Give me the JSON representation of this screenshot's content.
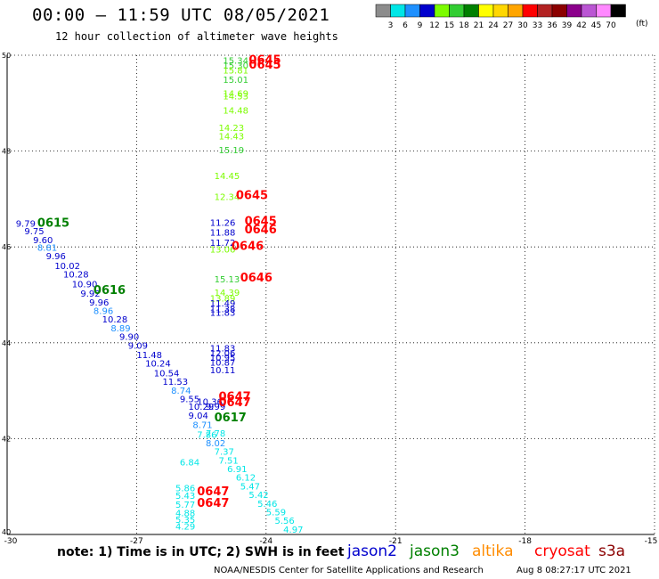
{
  "header": {
    "title": "00:00 – 11:59 UTC 08/05/2021",
    "subtitle": "12 hour collection of altimeter wave heights",
    "legend_unit": "(ft)"
  },
  "colorbar": [
    {
      "label": "3",
      "color": "#8c8c8c"
    },
    {
      "label": "6",
      "color": "#00e6e6"
    },
    {
      "label": "9",
      "color": "#1e90ff"
    },
    {
      "label": "12",
      "color": "#0000cd"
    },
    {
      "label": "15",
      "color": "#7cfc00"
    },
    {
      "label": "18",
      "color": "#32cd32"
    },
    {
      "label": "21",
      "color": "#008000"
    },
    {
      "label": "24",
      "color": "#ffff00"
    },
    {
      "label": "27",
      "color": "#ffd700"
    },
    {
      "label": "30",
      "color": "#ffa500"
    },
    {
      "label": "33",
      "color": "#ff0000"
    },
    {
      "label": "36",
      "color": "#b22222"
    },
    {
      "label": "39",
      "color": "#8b0000"
    },
    {
      "label": "42",
      "color": "#8b008b"
    },
    {
      "label": "45",
      "color": "#ba55d3"
    },
    {
      "label": "70",
      "color": "#ff88ff"
    },
    {
      "label": "",
      "color": "#000000"
    }
  ],
  "chart_data": {
    "type": "scatter",
    "xlim": [
      -30,
      -15
    ],
    "ylim": [
      40,
      50
    ],
    "x_ticks": [
      "-30",
      "-27",
      "-24",
      "-21",
      "-18",
      "-15"
    ],
    "y_ticks": [
      "50",
      "48",
      "46",
      "44",
      "42",
      "40"
    ],
    "grid": true,
    "points": [
      {
        "lon": -25.0,
        "lat": 49.82,
        "v": "15.34",
        "c": "#32cd32"
      },
      {
        "lon": -25.0,
        "lat": 49.72,
        "v": "15.30",
        "c": "#32cd32"
      },
      {
        "lon": -25.0,
        "lat": 49.62,
        "v": "15.81",
        "c": "#7cfc00"
      },
      {
        "lon": -25.0,
        "lat": 49.42,
        "v": "15.01",
        "c": "#32cd32"
      },
      {
        "lon": -25.0,
        "lat": 49.14,
        "v": "14.69",
        "c": "#7cfc00"
      },
      {
        "lon": -25.0,
        "lat": 49.08,
        "v": "14.53",
        "c": "#7cfc00"
      },
      {
        "lon": -25.0,
        "lat": 48.78,
        "v": "14.48",
        "c": "#7cfc00"
      },
      {
        "lon": -25.1,
        "lat": 48.42,
        "v": "14.23",
        "c": "#7cfc00"
      },
      {
        "lon": -25.1,
        "lat": 48.24,
        "v": "14.43",
        "c": "#7cfc00"
      },
      {
        "lon": -25.1,
        "lat": 47.96,
        "v": "15.19",
        "c": "#32cd32"
      },
      {
        "lon": -25.2,
        "lat": 47.42,
        "v": "14.45",
        "c": "#7cfc00"
      },
      {
        "lon": -25.2,
        "lat": 46.98,
        "v": "12.34",
        "c": "#7cfc00"
      },
      {
        "lon": -25.3,
        "lat": 46.44,
        "v": "11.26",
        "c": "#0000cd"
      },
      {
        "lon": -25.3,
        "lat": 46.24,
        "v": "11.88",
        "c": "#0000cd"
      },
      {
        "lon": -25.3,
        "lat": 46.02,
        "v": "11.72",
        "c": "#0000cd"
      },
      {
        "lon": -25.3,
        "lat": 45.88,
        "v": "13.06",
        "c": "#7cfc00"
      },
      {
        "lon": -25.2,
        "lat": 45.26,
        "v": "15.13",
        "c": "#32cd32"
      },
      {
        "lon": -25.2,
        "lat": 44.98,
        "v": "14.39",
        "c": "#7cfc00"
      },
      {
        "lon": -25.3,
        "lat": 44.86,
        "v": "13.89",
        "c": "#7cfc00"
      },
      {
        "lon": -25.3,
        "lat": 44.76,
        "v": "11.49",
        "c": "#0000cd"
      },
      {
        "lon": -25.3,
        "lat": 44.64,
        "v": "11.38",
        "c": "#0000cd"
      },
      {
        "lon": -25.3,
        "lat": 44.56,
        "v": "11.83",
        "c": "#0000cd"
      },
      {
        "lon": -29.8,
        "lat": 46.42,
        "v": "9.79",
        "c": "#0000cd"
      },
      {
        "lon": -29.6,
        "lat": 46.26,
        "v": "9.75",
        "c": "#0000cd"
      },
      {
        "lon": -29.4,
        "lat": 46.08,
        "v": "9.60",
        "c": "#0000cd"
      },
      {
        "lon": -29.3,
        "lat": 45.92,
        "v": "8.81",
        "c": "#1e90ff"
      },
      {
        "lon": -29.1,
        "lat": 45.74,
        "v": "9.96",
        "c": "#0000cd"
      },
      {
        "lon": -28.9,
        "lat": 45.54,
        "v": "10.02",
        "c": "#0000cd"
      },
      {
        "lon": -28.7,
        "lat": 45.36,
        "v": "10.28",
        "c": "#0000cd"
      },
      {
        "lon": -28.5,
        "lat": 45.16,
        "v": "10.90",
        "c": "#0000cd"
      },
      {
        "lon": -28.3,
        "lat": 44.96,
        "v": "9.92",
        "c": "#0000cd"
      },
      {
        "lon": -28.1,
        "lat": 44.78,
        "v": "9.96",
        "c": "#0000cd"
      },
      {
        "lon": -28.0,
        "lat": 44.6,
        "v": "8.96",
        "c": "#1e90ff"
      },
      {
        "lon": -27.8,
        "lat": 44.42,
        "v": "10.28",
        "c": "#0000cd"
      },
      {
        "lon": -27.6,
        "lat": 44.24,
        "v": "8.89",
        "c": "#1e90ff"
      },
      {
        "lon": -27.4,
        "lat": 44.06,
        "v": "9.90",
        "c": "#0000cd"
      },
      {
        "lon": -27.2,
        "lat": 43.88,
        "v": "9.09",
        "c": "#0000cd"
      },
      {
        "lon": -27.0,
        "lat": 43.68,
        "v": "11.48",
        "c": "#0000cd"
      },
      {
        "lon": -26.8,
        "lat": 43.5,
        "v": "10.24",
        "c": "#0000cd"
      },
      {
        "lon": -26.6,
        "lat": 43.3,
        "v": "10.54",
        "c": "#0000cd"
      },
      {
        "lon": -26.4,
        "lat": 43.12,
        "v": "11.53",
        "c": "#0000cd"
      },
      {
        "lon": -26.2,
        "lat": 42.94,
        "v": "8.74",
        "c": "#1e90ff"
      },
      {
        "lon": -26.0,
        "lat": 42.76,
        "v": "9.55",
        "c": "#0000cd"
      },
      {
        "lon": -25.8,
        "lat": 42.6,
        "v": "10.29",
        "c": "#0000cd"
      },
      {
        "lon": -25.8,
        "lat": 42.42,
        "v": "9.04",
        "c": "#0000cd"
      },
      {
        "lon": -25.7,
        "lat": 42.22,
        "v": "8.71",
        "c": "#1e90ff"
      },
      {
        "lon": -25.6,
        "lat": 42.02,
        "v": "7.86",
        "c": "#00e6e6"
      },
      {
        "lon": -25.4,
        "lat": 42.04,
        "v": "7.78",
        "c": "#00e6e6"
      },
      {
        "lon": -25.4,
        "lat": 41.84,
        "v": "8.02",
        "c": "#1e90ff"
      },
      {
        "lon": -25.2,
        "lat": 41.66,
        "v": "7.37",
        "c": "#00e6e6"
      },
      {
        "lon": -25.1,
        "lat": 41.48,
        "v": "7.51",
        "c": "#00e6e6"
      },
      {
        "lon": -26.0,
        "lat": 41.44,
        "v": "6.84",
        "c": "#00e6e6"
      },
      {
        "lon": -24.9,
        "lat": 41.3,
        "v": "6.91",
        "c": "#00e6e6"
      },
      {
        "lon": -24.7,
        "lat": 41.12,
        "v": "6.12",
        "c": "#00e6e6"
      },
      {
        "lon": -24.6,
        "lat": 40.94,
        "v": "5.47",
        "c": "#00e6e6"
      },
      {
        "lon": -24.4,
        "lat": 40.76,
        "v": "5.42",
        "c": "#00e6e6"
      },
      {
        "lon": -24.2,
        "lat": 40.58,
        "v": "5.46",
        "c": "#00e6e6"
      },
      {
        "lon": -24.0,
        "lat": 40.4,
        "v": "5.59",
        "c": "#00e6e6"
      },
      {
        "lon": -23.8,
        "lat": 40.22,
        "v": "5.56",
        "c": "#00e6e6"
      },
      {
        "lon": -23.6,
        "lat": 40.04,
        "v": "4.97",
        "c": "#00e6e6"
      },
      {
        "lon": -26.1,
        "lat": 40.9,
        "v": "5.86",
        "c": "#00e6e6"
      },
      {
        "lon": -26.1,
        "lat": 40.74,
        "v": "5.43",
        "c": "#00e6e6"
      },
      {
        "lon": -26.1,
        "lat": 40.56,
        "v": "5.77",
        "c": "#00e6e6"
      },
      {
        "lon": -26.1,
        "lat": 40.38,
        "v": "4.88",
        "c": "#00e6e6"
      },
      {
        "lon": -26.1,
        "lat": 40.24,
        "v": "5.35",
        "c": "#00e6e6"
      },
      {
        "lon": -26.1,
        "lat": 40.1,
        "v": "4.29",
        "c": "#00e6e6"
      },
      {
        "lon": -25.3,
        "lat": 43.82,
        "v": "11.83",
        "c": "#0000cd"
      },
      {
        "lon": -25.3,
        "lat": 43.72,
        "v": "12.06",
        "c": "#0000cd"
      },
      {
        "lon": -25.3,
        "lat": 43.62,
        "v": "10.95",
        "c": "#0000cd"
      },
      {
        "lon": -25.3,
        "lat": 43.52,
        "v": "10.87",
        "c": "#0000cd"
      },
      {
        "lon": -25.3,
        "lat": 43.36,
        "v": "10.11",
        "c": "#0000cd"
      },
      {
        "lon": -25.6,
        "lat": 42.7,
        "v": "10.36",
        "c": "#0000cd"
      },
      {
        "lon": -25.4,
        "lat": 42.6,
        "v": "9.99",
        "c": "#0000cd"
      }
    ],
    "times": [
      {
        "lon": -24.4,
        "lat": 49.82,
        "v": "0645",
        "c": "#ff0000"
      },
      {
        "lon": -24.4,
        "lat": 49.72,
        "v": "0645",
        "c": "#ff0000"
      },
      {
        "lon": -24.7,
        "lat": 47.0,
        "v": "0645",
        "c": "#ff0000"
      },
      {
        "lon": -24.5,
        "lat": 46.46,
        "v": "0645",
        "c": "#ff0000"
      },
      {
        "lon": -24.5,
        "lat": 46.28,
        "v": "0646",
        "c": "#ff0000"
      },
      {
        "lon": -24.8,
        "lat": 45.94,
        "v": "0646",
        "c": "#ff0000"
      },
      {
        "lon": -24.6,
        "lat": 45.28,
        "v": "0646",
        "c": "#ff0000"
      },
      {
        "lon": -29.3,
        "lat": 46.42,
        "v": "0615",
        "c": "#008000"
      },
      {
        "lon": -28.0,
        "lat": 45.02,
        "v": "0616",
        "c": "#008000"
      },
      {
        "lon": -25.1,
        "lat": 42.8,
        "v": "0647",
        "c": "#ff0000"
      },
      {
        "lon": -25.1,
        "lat": 42.68,
        "v": "0647",
        "c": "#ff0000"
      },
      {
        "lon": -25.2,
        "lat": 42.36,
        "v": "0617",
        "c": "#008000"
      },
      {
        "lon": -25.6,
        "lat": 40.82,
        "v": "0647",
        "c": "#ff0000"
      },
      {
        "lon": -25.6,
        "lat": 40.58,
        "v": "0647",
        "c": "#ff0000"
      }
    ]
  },
  "footer": {
    "note": "note:  1) Time is in UTC;  2) SWH is in feet",
    "missions": [
      {
        "name": "jason2",
        "color": "#0000cd"
      },
      {
        "name": "jason3",
        "color": "#008000"
      },
      {
        "name": "altika",
        "color": "#ff8c00"
      },
      {
        "name": "cryosat",
        "color": "#ff0000"
      },
      {
        "name": "s3a",
        "color": "#8b0000"
      }
    ],
    "credit": "NOAA/NESDIS Center for Satellite Applications and Research",
    "timestamp": "Aug  8 08:27:17 UTC 2021"
  }
}
